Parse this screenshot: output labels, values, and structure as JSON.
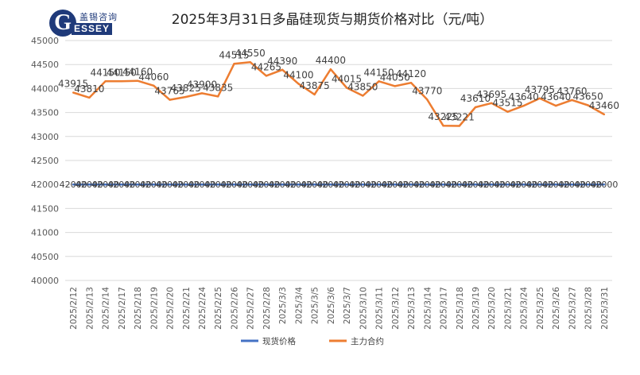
{
  "logo": {
    "letter": "G",
    "cn": "盖锡咨询",
    "en": "ESSEY"
  },
  "chart_data": {
    "type": "line",
    "title": "2025年3月31日多晶硅现货与期货价格对比（元/吨）",
    "xlabel": "",
    "ylabel": "",
    "ylim": [
      40000,
      45000
    ],
    "yticks": [
      40000,
      40500,
      41000,
      41500,
      42000,
      42500,
      43000,
      43500,
      44000,
      44500,
      45000
    ],
    "grid": true,
    "legend": "bottom",
    "categories": [
      "2025/2/12",
      "2025/2/13",
      "2025/2/14",
      "2025/2/17",
      "2025/2/18",
      "2025/2/19",
      "2025/2/20",
      "2025/2/21",
      "2025/2/24",
      "2025/2/25",
      "2025/2/26",
      "2025/2/27",
      "2025/2/28",
      "2025/3/3",
      "2025/3/4",
      "2025/3/5",
      "2025/3/6",
      "2025/3/7",
      "2025/3/10",
      "2025/3/11",
      "2025/3/12",
      "2025/3/13",
      "2025/3/14",
      "2025/3/17",
      "2025/3/18",
      "2025/3/19",
      "2025/3/20",
      "2025/3/21",
      "2025/3/24",
      "2025/3/25",
      "2025/3/26",
      "2025/3/27",
      "2025/3/28",
      "2025/3/31"
    ],
    "series": [
      {
        "name": "现货价格",
        "color": "#4472c4",
        "values": [
          42000,
          42000,
          42000,
          42000,
          42000,
          42000,
          42000,
          42000,
          42000,
          42000,
          42000,
          42000,
          42000,
          42000,
          42000,
          42000,
          42000,
          42000,
          42000,
          42000,
          42000,
          42000,
          42000,
          42000,
          42000,
          42000,
          42000,
          42000,
          42000,
          42000,
          42000,
          42000,
          42000,
          42000
        ]
      },
      {
        "name": "主力合约",
        "color": "#ed7d31",
        "values": [
          43915,
          43810,
          44150,
          44150,
          44160,
          44060,
          43765,
          43825,
          43900,
          43835,
          44515,
          44550,
          44265,
          44390,
          44100,
          43875,
          44400,
          44015,
          43850,
          44150,
          44050,
          44120,
          43770,
          43225,
          43221,
          43610,
          43695,
          43515,
          43640,
          43795,
          43640,
          43760,
          43650,
          43460
        ]
      }
    ]
  }
}
